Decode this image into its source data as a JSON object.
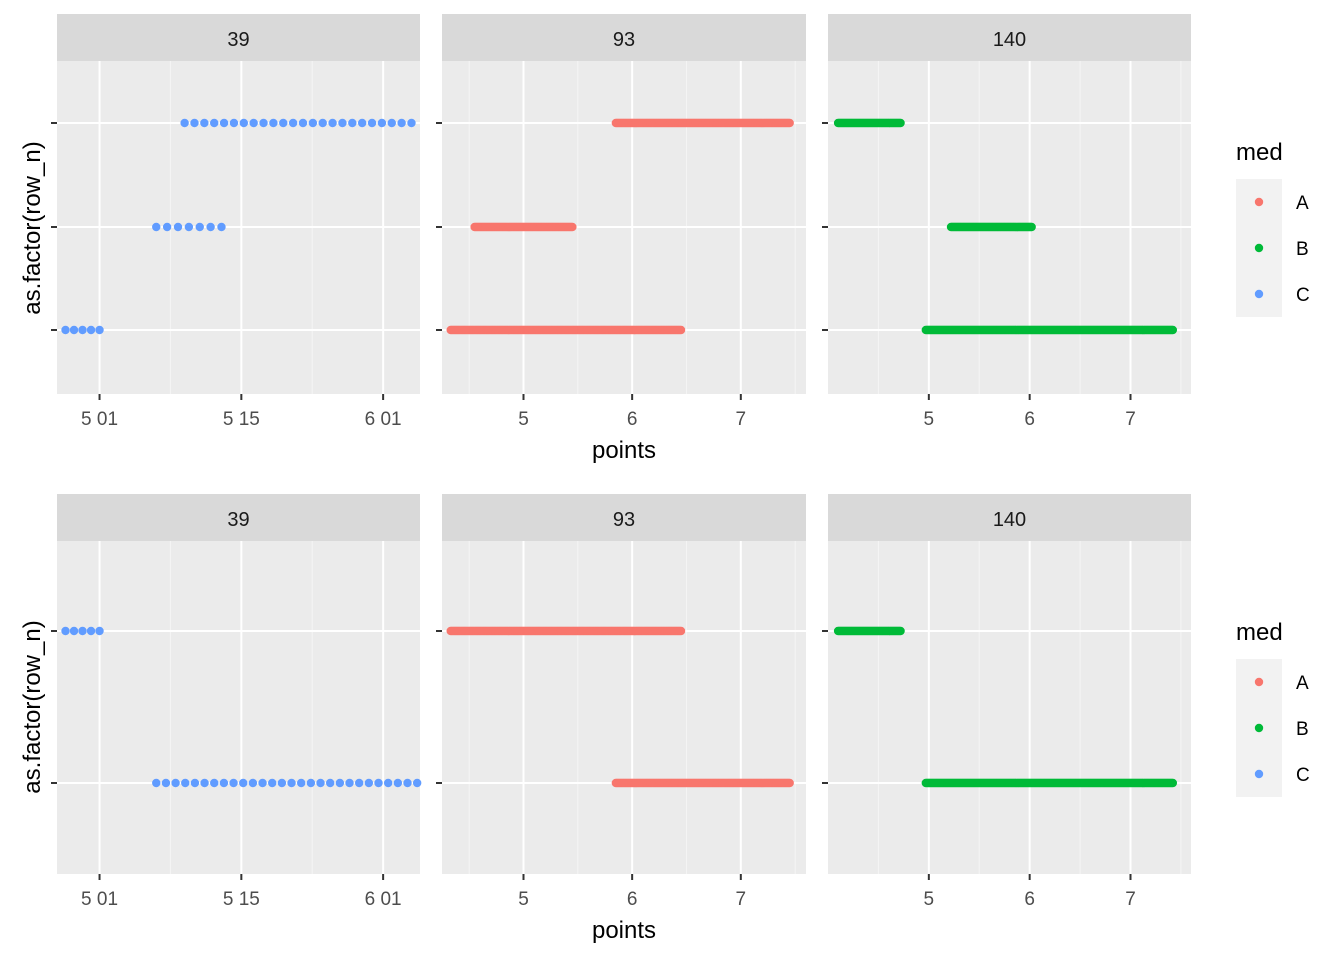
{
  "chart_data": [
    {
      "type": "scatter",
      "ylabel": "as.factor(row_n)",
      "xlabel": "points",
      "rows": 3,
      "legend": {
        "title": "med",
        "position": "right",
        "entries": [
          {
            "label": "A",
            "color": "#F8766D"
          },
          {
            "label": "B",
            "color": "#00BA38"
          },
          {
            "label": "C",
            "color": "#619CFF"
          }
        ]
      },
      "panels": [
        {
          "strip": "39",
          "xlim": [
            4.85,
            6.13
          ],
          "ticks": [
            {
              "v": 5.0,
              "label": "5 01"
            },
            {
              "v": 5.5,
              "label": "5 15"
            },
            {
              "v": 6.0,
              "label": "6 01"
            }
          ],
          "minor": [
            5.25,
            5.75
          ],
          "segments": [
            {
              "row": 1,
              "from": 4.88,
              "to": 5.0,
              "n": 5,
              "med": "C"
            },
            {
              "row": 2,
              "from": 5.2,
              "to": 5.43,
              "n": 7,
              "med": "C"
            },
            {
              "row": 3,
              "from": 5.3,
              "to": 6.1,
              "n": 24,
              "med": "C"
            }
          ]
        },
        {
          "strip": "93",
          "xlim": [
            4.25,
            7.6
          ],
          "ticks": [
            {
              "v": 5,
              "label": "5"
            },
            {
              "v": 6,
              "label": "6"
            },
            {
              "v": 7,
              "label": "7"
            }
          ],
          "minor": [
            4.5,
            5.5,
            6.5,
            7.5
          ],
          "segments": [
            {
              "row": 1,
              "from": 4.33,
              "to": 6.45,
              "n": 200,
              "med": "A"
            },
            {
              "row": 2,
              "from": 4.55,
              "to": 5.45,
              "n": 90,
              "med": "A"
            },
            {
              "row": 3,
              "from": 5.85,
              "to": 7.45,
              "n": 160,
              "med": "A"
            }
          ]
        },
        {
          "strip": "140",
          "xlim": [
            4.0,
            7.6
          ],
          "ticks": [
            {
              "v": 5,
              "label": "5"
            },
            {
              "v": 6,
              "label": "6"
            },
            {
              "v": 7,
              "label": "7"
            }
          ],
          "minor": [
            4.5,
            5.5,
            6.5,
            7.5
          ],
          "segments": [
            {
              "row": 1,
              "from": 4.97,
              "to": 7.42,
              "n": 240,
              "med": "B"
            },
            {
              "row": 2,
              "from": 5.22,
              "to": 6.02,
              "n": 80,
              "med": "B"
            },
            {
              "row": 3,
              "from": 4.1,
              "to": 4.72,
              "n": 60,
              "med": "B"
            }
          ]
        }
      ]
    },
    {
      "type": "scatter",
      "ylabel": "as.factor(row_n)",
      "xlabel": "points",
      "rows": 2,
      "legend": {
        "title": "med",
        "position": "right",
        "entries": [
          {
            "label": "A",
            "color": "#F8766D"
          },
          {
            "label": "B",
            "color": "#00BA38"
          },
          {
            "label": "C",
            "color": "#619CFF"
          }
        ]
      },
      "panels": [
        {
          "strip": "39",
          "xlim": [
            4.85,
            6.13
          ],
          "ticks": [
            {
              "v": 5.0,
              "label": "5 01"
            },
            {
              "v": 5.5,
              "label": "5 15"
            },
            {
              "v": 6.0,
              "label": "6 01"
            }
          ],
          "minor": [
            5.25,
            5.75
          ],
          "segments": [
            {
              "row": 1,
              "from": 5.2,
              "to": 6.12,
              "n": 28,
              "med": "C"
            },
            {
              "row": 2,
              "from": 4.88,
              "to": 5.0,
              "n": 5,
              "med": "C"
            }
          ]
        },
        {
          "strip": "93",
          "xlim": [
            4.25,
            7.6
          ],
          "ticks": [
            {
              "v": 5,
              "label": "5"
            },
            {
              "v": 6,
              "label": "6"
            },
            {
              "v": 7,
              "label": "7"
            }
          ],
          "minor": [
            4.5,
            5.5,
            6.5,
            7.5
          ],
          "segments": [
            {
              "row": 1,
              "from": 5.85,
              "to": 7.45,
              "n": 160,
              "med": "A"
            },
            {
              "row": 2,
              "from": 4.33,
              "to": 6.45,
              "n": 200,
              "med": "A"
            }
          ]
        },
        {
          "strip": "140",
          "xlim": [
            4.0,
            7.6
          ],
          "ticks": [
            {
              "v": 5,
              "label": "5"
            },
            {
              "v": 6,
              "label": "6"
            },
            {
              "v": 7,
              "label": "7"
            }
          ],
          "minor": [
            4.5,
            5.5,
            6.5,
            7.5
          ],
          "segments": [
            {
              "row": 1,
              "from": 4.97,
              "to": 7.42,
              "n": 240,
              "med": "B"
            },
            {
              "row": 2,
              "from": 4.1,
              "to": 4.72,
              "n": 60,
              "med": "B"
            }
          ]
        }
      ]
    }
  ]
}
